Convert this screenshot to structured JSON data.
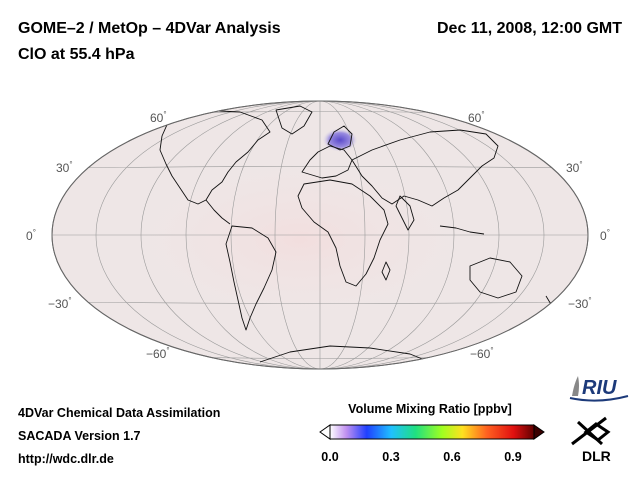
{
  "header": {
    "title_line1": "GOME–2 / MetOp – 4DVar Analysis",
    "title_line2": "ClO at 55.4 hPa",
    "date": "Dec 11, 2008, 12:00 GMT"
  },
  "map": {
    "projection": "Hammer/Mollweide (equal-area)",
    "lat_labels_left": [
      "60",
      "30",
      "0",
      "−30",
      "−60"
    ],
    "lat_labels_right": [
      "60",
      "30",
      "0",
      "−30",
      "−60"
    ],
    "degree_symbol": "°",
    "background_color": "#efe8e8",
    "hotspot_color": "#6a5ad0"
  },
  "footer": {
    "line1": "4DVar Chemical Data Assimilation",
    "line2": "SACADA Version 1.7",
    "line3": "http://wdc.dlr.de"
  },
  "legend": {
    "title": "Volume Mixing Ratio [ppbv]",
    "ticks": [
      "0.0",
      "0.3",
      "0.6",
      "0.9"
    ],
    "min": 0.0,
    "max": 1.0
  },
  "logos": {
    "riu_text": "RIU",
    "dlr_text": "DLR"
  }
}
